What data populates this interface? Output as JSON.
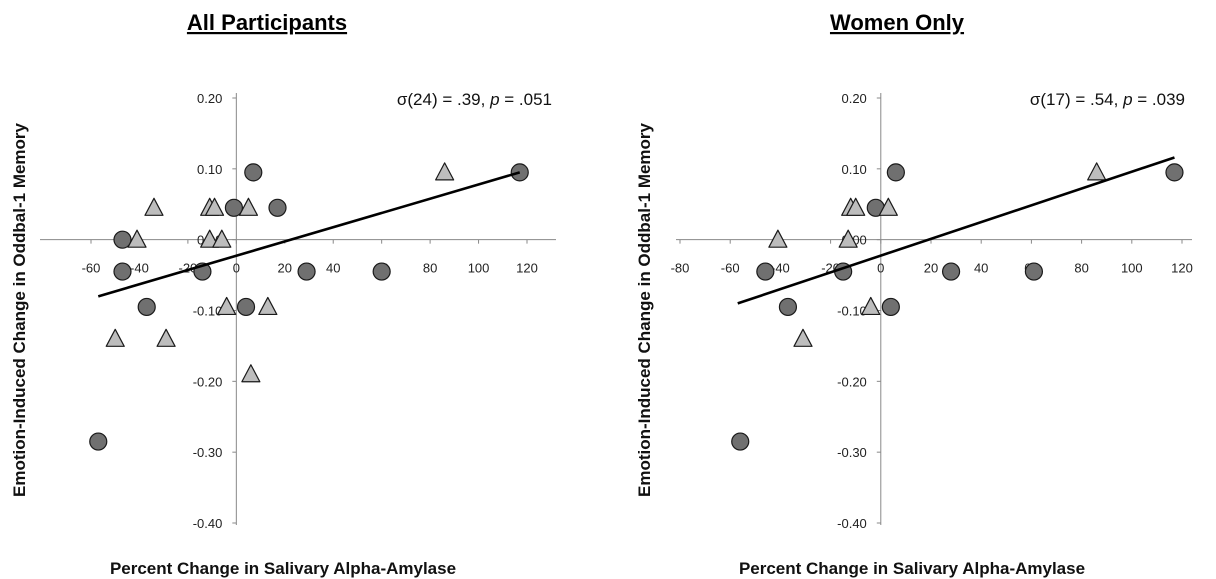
{
  "chart_data": [
    {
      "type": "scatter",
      "title": "All Participants",
      "xlabel": "Percent Change in Salivary Alpha-Amylase",
      "ylabel": "Emotion-Induced Change in Oddbal-1 Memory",
      "annotation": {
        "prefix": "σ(24) = .39, ",
        "p_label": "p",
        "suffix": " = .051"
      },
      "xlim": [
        -65,
        125
      ],
      "ylim": [
        -0.4,
        0.22
      ],
      "x_ticks": [
        -60,
        -40,
        -20,
        0,
        20,
        40,
        60,
        80,
        100,
        120
      ],
      "y_ticks": [
        0.2,
        0.1,
        0.0,
        -0.1,
        -0.2,
        -0.3,
        -0.4
      ],
      "x_tick_labels": [
        "-60",
        "-40",
        "-20",
        "0",
        "20",
        "40",
        "60",
        "80",
        "100",
        "120"
      ],
      "y_tick_labels": [
        "0.20",
        "0.10",
        "0.00",
        "-0.10",
        "-0.20",
        "-0.30",
        "-0.40"
      ],
      "grid": false,
      "series": [
        {
          "marker": "circle",
          "color": "#707070",
          "points": [
            [
              117,
              0.095
            ],
            [
              7,
              0.095
            ],
            [
              17,
              0.045
            ],
            [
              -1,
              0.045
            ],
            [
              -47,
              0.0
            ],
            [
              -47,
              -0.045
            ],
            [
              -14,
              -0.045
            ],
            [
              29,
              -0.045
            ],
            [
              60,
              -0.045
            ],
            [
              -37,
              -0.095
            ],
            [
              4,
              -0.095
            ],
            [
              -57,
              -0.285
            ]
          ]
        },
        {
          "marker": "triangle",
          "color": "#bdbdbd",
          "points": [
            [
              86,
              0.095
            ],
            [
              -34,
              0.045
            ],
            [
              -11,
              0.045
            ],
            [
              -9,
              0.045
            ],
            [
              5,
              0.045
            ],
            [
              -41,
              0.0
            ],
            [
              -11,
              0.0
            ],
            [
              -6,
              0.0
            ],
            [
              -4,
              -0.095
            ],
            [
              13,
              -0.095
            ],
            [
              -50,
              -0.14
            ],
            [
              -29,
              -0.14
            ],
            [
              6,
              -0.19
            ]
          ]
        }
      ],
      "trendline": {
        "x": [
          -57,
          117
        ],
        "y": [
          -0.08,
          0.095
        ]
      }
    },
    {
      "type": "scatter",
      "title": "Women Only",
      "xlabel": "Percent Change in Salivary Alpha-Amylase",
      "ylabel": "Emotion-Induced Change in Oddbal-1 Memory",
      "annotation": {
        "prefix": "σ(17) = .54, ",
        "p_label": "p",
        "suffix": " = .039"
      },
      "xlim": [
        -82,
        125
      ],
      "ylim": [
        -0.4,
        0.22
      ],
      "x_ticks": [
        -80,
        -60,
        -40,
        -20,
        0,
        20,
        40,
        60,
        80,
        100,
        120
      ],
      "y_ticks": [
        0.2,
        0.1,
        0.0,
        -0.1,
        -0.2,
        -0.3,
        -0.4
      ],
      "x_tick_labels": [
        "-80",
        "-60",
        "-40",
        "-20",
        "0",
        "20",
        "40",
        "60",
        "80",
        "100",
        "120"
      ],
      "y_tick_labels": [
        "0.20",
        "0.10",
        "0.00",
        "-0.10",
        "-0.20",
        "-0.30",
        "-0.40"
      ],
      "grid": false,
      "series": [
        {
          "marker": "circle",
          "color": "#707070",
          "points": [
            [
              117,
              0.095
            ],
            [
              6,
              0.095
            ],
            [
              -2,
              0.045
            ],
            [
              -46,
              -0.045
            ],
            [
              -15,
              -0.045
            ],
            [
              28,
              -0.045
            ],
            [
              61,
              -0.045
            ],
            [
              -37,
              -0.095
            ],
            [
              4,
              -0.095
            ],
            [
              -56,
              -0.285
            ]
          ]
        },
        {
          "marker": "triangle",
          "color": "#bdbdbd",
          "points": [
            [
              86,
              0.095
            ],
            [
              -12,
              0.045
            ],
            [
              -10,
              0.045
            ],
            [
              3,
              0.045
            ],
            [
              -41,
              0.0
            ],
            [
              -13,
              0.0
            ],
            [
              -4,
              -0.095
            ],
            [
              -31,
              -0.14
            ]
          ]
        }
      ],
      "trendline": {
        "x": [
          -57,
          117
        ],
        "y": [
          -0.09,
          0.116
        ]
      }
    }
  ]
}
